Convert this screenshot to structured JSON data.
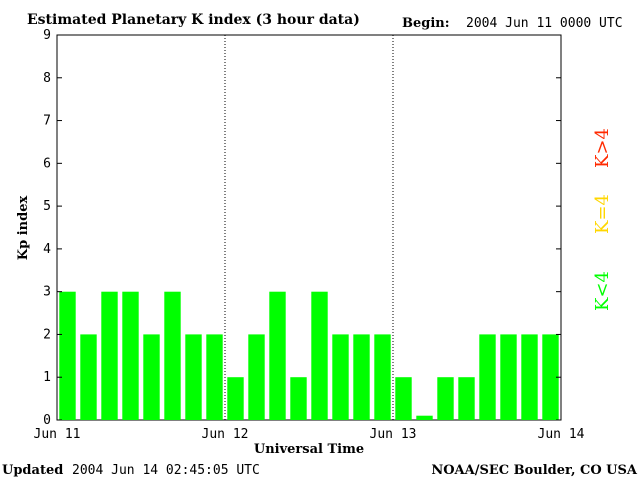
{
  "header": {
    "title": "Estimated Planetary K index (3 hour data)",
    "begin_label": "Begin:",
    "begin_value": "2004 Jun 11 0000 UTC"
  },
  "footer": {
    "updated_label": "Updated",
    "updated_value": "2004 Jun 14 02:45:05 UTC",
    "credit": "NOAA/SEC Boulder, CO USA"
  },
  "legend": {
    "low": "K<4",
    "mid": "K=4",
    "high": "K>4",
    "low_color": "#00ff00",
    "mid_color": "#ffd700",
    "high_color": "#ff2a00"
  },
  "chart_data": {
    "type": "bar",
    "title": "Estimated Planetary K index (3 hour data)",
    "xlabel": "Universal Time",
    "ylabel": "Kp index",
    "ylim": [
      0,
      9
    ],
    "yticks": [
      "0",
      "1",
      "2",
      "3",
      "4",
      "5",
      "6",
      "7",
      "8",
      "9"
    ],
    "xticks": [
      "Jun 11",
      "Jun 12",
      "Jun 13",
      "Jun 14"
    ],
    "grid": false,
    "bar_color": "#00ff00",
    "values": [
      3,
      2,
      3,
      3,
      2,
      3,
      2,
      2,
      1,
      2,
      3,
      1,
      3,
      2,
      2,
      2,
      1,
      0.1,
      1,
      1,
      2,
      2,
      2,
      2
    ]
  }
}
